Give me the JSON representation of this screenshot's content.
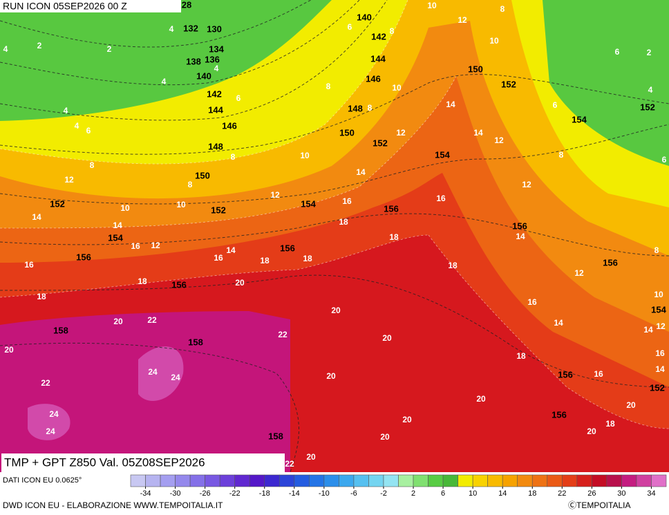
{
  "header": {
    "run": "RUN ICON 05SEP2026 00 Z"
  },
  "map": {
    "title": "TMP + GPT Z850 Val. 05Z08SEP2026",
    "geopotential_labels": [
      28,
      140,
      132,
      130,
      142,
      134,
      138,
      136,
      144,
      140,
      146,
      150,
      152,
      142,
      152,
      144,
      148,
      154,
      146,
      150,
      148,
      152,
      154,
      150,
      152,
      154,
      152,
      156,
      156,
      154,
      156,
      156,
      156,
      156,
      154,
      158,
      158,
      156,
      152,
      156,
      158
    ],
    "temperature_labels": [
      10,
      8,
      6,
      8,
      12,
      4,
      2,
      2,
      4,
      4,
      10,
      6,
      2,
      4,
      10,
      8,
      6,
      4,
      14,
      4,
      6,
      4,
      8,
      6,
      14,
      12,
      12,
      8,
      10,
      8,
      6,
      8,
      12,
      14,
      8,
      12,
      12,
      16,
      16,
      10,
      10,
      14,
      18,
      14,
      14,
      12,
      16,
      8,
      18,
      14,
      16,
      16,
      18,
      18,
      18,
      12,
      18,
      20,
      18,
      10,
      16,
      20,
      20,
      22,
      14,
      12,
      14,
      22,
      20,
      20,
      18,
      16,
      24,
      24,
      16,
      20,
      14,
      22,
      20,
      20,
      24,
      20,
      18,
      24,
      20,
      20,
      22,
      20
    ]
  },
  "colorbar": {
    "source": "DATI ICON EU 0.0625°",
    "lim": [
      -36,
      36
    ],
    "ticks": [
      -34,
      -30,
      -26,
      -22,
      -18,
      -14,
      -10,
      -6,
      -2,
      2,
      6,
      10,
      14,
      18,
      22,
      26,
      30,
      34
    ],
    "colors": [
      "#c8c8f2",
      "#b6b4f0",
      "#a49ef0",
      "#9488ec",
      "#8470e8",
      "#7858e2",
      "#6c40da",
      "#6028d0",
      "#5418c8",
      "#3c28d0",
      "#2c44d8",
      "#245ce0",
      "#2474e6",
      "#2c8eea",
      "#3ca8ee",
      "#56c0f0",
      "#74d4f0",
      "#94e4f2",
      "#a8f0a0",
      "#80e070",
      "#58cc44",
      "#48b838",
      "#f2ec00",
      "#f8d200",
      "#f8ba00",
      "#f6a200",
      "#f28a10",
      "#ee7214",
      "#ea5a16",
      "#e43e18",
      "#d6201c",
      "#c40c24",
      "#b8104c",
      "#c41c80",
      "#d040a0",
      "#e070c8"
    ]
  },
  "footer": {
    "credit": "DWD ICON EU - ELABORAZIONE WWW.TEMPOITALIA.IT",
    "copyright": "ⒸTEMPOITALIA"
  }
}
